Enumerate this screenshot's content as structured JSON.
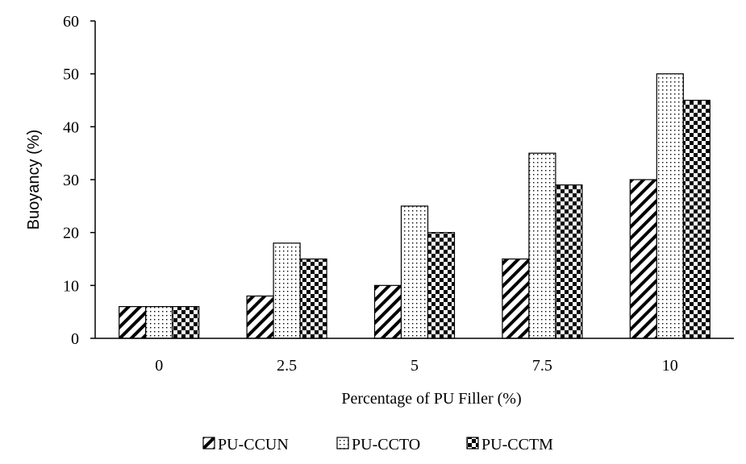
{
  "chart_data": {
    "type": "bar",
    "title": "",
    "xlabel": "Percentage of PU Filler (%)",
    "ylabel": "Buoyancy (%)",
    "categories": [
      "0",
      "2.5",
      "5",
      "7.5",
      "10"
    ],
    "ylim": [
      0,
      60
    ],
    "yticks": [
      "0",
      "10",
      "20",
      "30",
      "40",
      "50",
      "60"
    ],
    "grid": false,
    "legend_position": "bottom",
    "series": [
      {
        "name": "PU-CCUN",
        "pattern": "diagonal-hatch",
        "values": [
          6,
          8,
          10,
          15,
          30
        ]
      },
      {
        "name": "PU-CCTO",
        "pattern": "dots",
        "values": [
          6,
          18,
          25,
          35,
          50
        ]
      },
      {
        "name": "PU-CCTM",
        "pattern": "checker",
        "values": [
          6,
          15,
          20,
          29,
          45
        ]
      }
    ],
    "colors": {
      "ink": "#000000",
      "background": "#ffffff"
    }
  }
}
